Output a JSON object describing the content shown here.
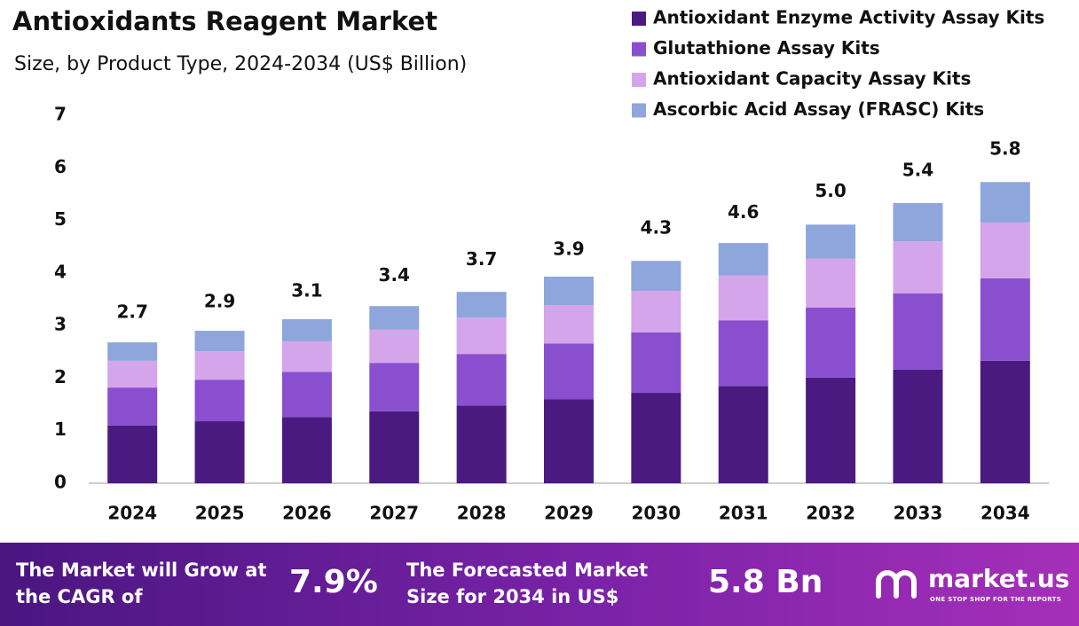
{
  "chart_data": {
    "type": "stacked-bar",
    "title": "Antioxidants Reagent Market",
    "subtitle": "Size, by Product Type, 2024-2034 (US$ Billion)",
    "categories": [
      "2024",
      "2025",
      "2026",
      "2027",
      "2028",
      "2029",
      "2030",
      "2031",
      "2032",
      "2033",
      "2034"
    ],
    "series": [
      {
        "name": "Antioxidant Enzyme Activity Assay Kits",
        "color": "#4b1a80",
        "values": [
          1.1,
          1.18,
          1.26,
          1.37,
          1.48,
          1.6,
          1.72,
          1.85,
          2.01,
          2.16,
          2.33
        ]
      },
      {
        "name": "Glutathione Assay Kits",
        "color": "#8a4fcf",
        "values": [
          0.72,
          0.79,
          0.86,
          0.92,
          0.98,
          1.06,
          1.15,
          1.25,
          1.33,
          1.45,
          1.57
        ]
      },
      {
        "name": "Antioxidant Capacity Assay Kits",
        "color": "#d4a5ea",
        "values": [
          0.51,
          0.54,
          0.58,
          0.63,
          0.69,
          0.73,
          0.79,
          0.85,
          0.93,
          0.99,
          1.06
        ]
      },
      {
        "name": "Ascorbic Acid Assay (FRASC) Kits",
        "color": "#8fa6dc",
        "values": [
          0.35,
          0.39,
          0.42,
          0.45,
          0.49,
          0.54,
          0.57,
          0.62,
          0.65,
          0.73,
          0.77
        ]
      }
    ],
    "totals": {
      "values": [
        2.7,
        2.9,
        3.1,
        3.4,
        3.7,
        3.9,
        4.3,
        4.6,
        5.0,
        5.4,
        5.8
      ],
      "value_labels": [
        "2.7",
        "2.9",
        "3.1",
        "3.4",
        "3.7",
        "3.9",
        "4.3",
        "4.6",
        "5.0",
        "5.4",
        "5.8"
      ]
    },
    "ylim": [
      0,
      7
    ],
    "yticks": [
      0,
      1,
      2,
      3,
      4,
      5,
      6,
      7
    ],
    "grid": false,
    "legend": "top-right"
  },
  "footer": {
    "cagr_text": "The Market will Grow at the CAGR of",
    "cagr": "7.9%",
    "size_text": "The Forecasted Market Size for 2034 in US$",
    "size": "5.8 Bn",
    "brand": "market.us",
    "tagline": "ONE STOP SHOP FOR THE REPORTS"
  }
}
